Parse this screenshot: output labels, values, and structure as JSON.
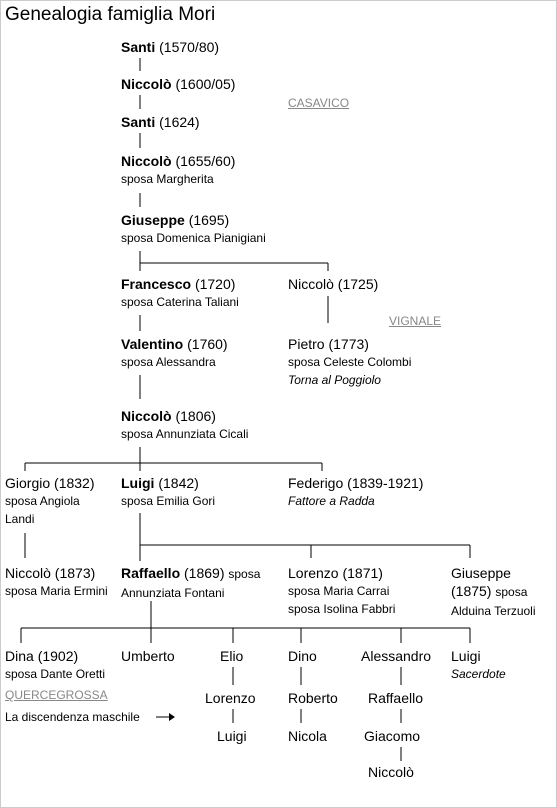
{
  "header": {
    "title": "Genealogia famiglia Mori"
  },
  "nodes": [
    {
      "name": "Santi",
      "dates": "(1570/80)"
    },
    {
      "name": "Niccolò",
      "dates": "(1600/05)"
    },
    {
      "name": "Santi",
      "dates": "(1624)"
    },
    {
      "name": "Niccolò",
      "dates": "(1655/60)",
      "spouses": [
        "sposa Margherita"
      ]
    },
    {
      "name": "Giuseppe",
      "dates": "(1695)",
      "spouses": [
        "sposa Domenica Pianigiani"
      ]
    },
    {
      "name": "Francesco",
      "dates": "(1720)",
      "spouses": [
        "sposa Caterina Taliani"
      ]
    },
    {
      "name": "Niccolò",
      "dates": "(1725)"
    },
    {
      "name": "Valentino",
      "dates": "(1760)",
      "spouses": [
        "sposa Alessandra"
      ]
    },
    {
      "name": "Pietro",
      "dates": "(1773)",
      "spouses": [
        "sposa Celeste Colombi"
      ],
      "note": "Torna al Poggiolo"
    },
    {
      "name": "Niccolò",
      "dates": "(1806)",
      "spouses": [
        "sposa Annunziata Cicali"
      ]
    },
    {
      "name": "Giorgio",
      "dates": "(1832)",
      "spouses": [
        "sposa Angiola Landi"
      ]
    },
    {
      "name": "Luigi",
      "dates": "(1842)",
      "spouses": [
        "sposa Emilia Gori"
      ]
    },
    {
      "name": "Federigo",
      "dates": "(1839-1921)",
      "note": "Fattore a Radda"
    },
    {
      "name": "Niccolò",
      "dates": "(1873)",
      "spouses": [
        "sposa Maria Ermini"
      ]
    },
    {
      "name": "Raffaello",
      "dates": "(1869)",
      "spouses": [
        "sposa Annunziata Fontani"
      ]
    },
    {
      "name": "Lorenzo",
      "dates": "(1871)",
      "spouses": [
        "sposa Maria Carrai",
        "sposa Isolina Fabbri"
      ]
    },
    {
      "name": "Giuseppe",
      "dates": "(1875)",
      "spouses": [
        "sposa Alduina Terzuoli"
      ]
    },
    {
      "name": "Dina",
      "dates": "(1902)",
      "spouses": [
        "sposa Dante Oretti"
      ]
    },
    {
      "name": "Umberto"
    },
    {
      "name": "Elio"
    },
    {
      "name": "Dino"
    },
    {
      "name": "Alessandro"
    },
    {
      "name": "Luigi",
      "note": "Sacerdote"
    },
    {
      "name": "Lorenzo"
    },
    {
      "name": "Luigi"
    },
    {
      "name": "Roberto"
    },
    {
      "name": "Nicola"
    },
    {
      "name": "Raffaello"
    },
    {
      "name": "Giacomo"
    },
    {
      "name": "Niccolò"
    }
  ],
  "links": {
    "casavico": "CASAVICO",
    "vignale": "VIGNALE",
    "quercegrossa": "QUERCEGROSSA"
  },
  "footer": {
    "text": "La discendenza maschile"
  }
}
